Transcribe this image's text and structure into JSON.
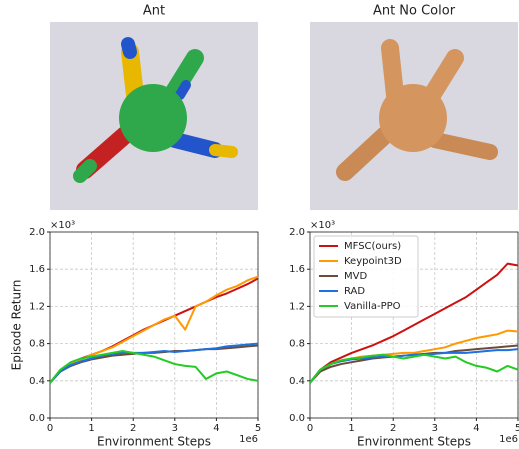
{
  "chart_data": [
    {
      "type": "line",
      "panel_title": "Ant",
      "x_label": "Environment Steps",
      "y_label": "Episode Return",
      "x_multiplier": "1e6",
      "y_multiplier": "×10³",
      "x": [
        0,
        0.25,
        0.5,
        0.75,
        1,
        1.25,
        1.5,
        1.75,
        2,
        2.25,
        2.5,
        2.75,
        3,
        3.25,
        3.5,
        3.75,
        4,
        4.25,
        4.5,
        4.75,
        5
      ],
      "xlim": [
        0,
        5
      ],
      "xticks": [
        0,
        1,
        2,
        3,
        4,
        5
      ],
      "ylim": [
        0,
        2
      ],
      "yticks": [
        {
          "value": 0,
          "label": "0.0"
        },
        0.4,
        0.8,
        1.2,
        1.6,
        {
          "value": 2,
          "label": "2.0"
        }
      ],
      "grid": true,
      "legend": false,
      "series": [
        {
          "color": "#cc1111",
          "values": [
            0.38,
            0.5,
            0.58,
            0.64,
            0.68,
            0.72,
            0.77,
            0.83,
            0.89,
            0.95,
            1.0,
            1.05,
            1.1,
            1.15,
            1.2,
            1.25,
            1.3,
            1.34,
            1.39,
            1.44,
            1.5
          ]
        },
        {
          "color": "#ff9900",
          "values": [
            0.38,
            0.5,
            0.58,
            0.63,
            0.68,
            0.72,
            0.76,
            0.82,
            0.88,
            0.94,
            1.0,
            1.06,
            1.1,
            0.95,
            1.2,
            1.25,
            1.32,
            1.38,
            1.42,
            1.48,
            1.52
          ]
        },
        {
          "color": "#6b4c3b",
          "values": [
            0.38,
            0.5,
            0.56,
            0.6,
            0.63,
            0.65,
            0.67,
            0.68,
            0.69,
            0.7,
            0.7,
            0.71,
            0.72,
            0.72,
            0.73,
            0.74,
            0.74,
            0.75,
            0.76,
            0.77,
            0.78
          ]
        },
        {
          "color": "#1f6fe0",
          "values": [
            0.38,
            0.5,
            0.57,
            0.61,
            0.64,
            0.67,
            0.69,
            0.7,
            0.7,
            0.7,
            0.71,
            0.72,
            0.71,
            0.72,
            0.73,
            0.74,
            0.75,
            0.77,
            0.78,
            0.79,
            0.8
          ]
        },
        {
          "color": "#22cc22",
          "values": [
            0.38,
            0.52,
            0.6,
            0.64,
            0.66,
            0.68,
            0.7,
            0.72,
            0.7,
            0.68,
            0.66,
            0.62,
            0.58,
            0.56,
            0.55,
            0.42,
            0.48,
            0.5,
            0.46,
            0.42,
            0.4
          ]
        }
      ]
    },
    {
      "type": "line",
      "panel_title": "Ant No Color",
      "x_label": "Environment Steps",
      "x_multiplier": "1e6",
      "y_multiplier": "×10³",
      "x": [
        0,
        0.25,
        0.5,
        0.75,
        1,
        1.25,
        1.5,
        1.75,
        2,
        2.25,
        2.5,
        2.75,
        3,
        3.25,
        3.5,
        3.75,
        4,
        4.25,
        4.5,
        4.75,
        5
      ],
      "xlim": [
        0,
        5
      ],
      "xticks": [
        0,
        1,
        2,
        3,
        4,
        5
      ],
      "ylim": [
        0,
        2
      ],
      "yticks": [
        {
          "value": 0,
          "label": "0.0"
        },
        0.4,
        0.8,
        1.2,
        1.6,
        {
          "value": 2,
          "label": "2.0"
        }
      ],
      "grid": true,
      "legend": "upper left",
      "series": [
        {
          "name": "MFSC(ours)",
          "color": "#cc1111",
          "values": [
            0.38,
            0.52,
            0.6,
            0.65,
            0.7,
            0.74,
            0.78,
            0.83,
            0.88,
            0.94,
            1.0,
            1.06,
            1.12,
            1.18,
            1.24,
            1.3,
            1.38,
            1.46,
            1.54,
            1.66,
            1.64
          ]
        },
        {
          "name": "Keypoint3D",
          "color": "#ff9900",
          "values": [
            0.38,
            0.5,
            0.58,
            0.62,
            0.64,
            0.66,
            0.67,
            0.68,
            0.69,
            0.7,
            0.7,
            0.72,
            0.74,
            0.76,
            0.8,
            0.83,
            0.86,
            0.88,
            0.9,
            0.94,
            0.93
          ]
        },
        {
          "name": "MVD",
          "color": "#6b4c3b",
          "values": [
            0.38,
            0.5,
            0.55,
            0.58,
            0.6,
            0.62,
            0.64,
            0.65,
            0.66,
            0.67,
            0.68,
            0.69,
            0.7,
            0.7,
            0.72,
            0.73,
            0.74,
            0.75,
            0.76,
            0.77,
            0.78
          ]
        },
        {
          "name": "RAD",
          "color": "#1f6fe0",
          "values": [
            0.38,
            0.52,
            0.58,
            0.61,
            0.63,
            0.64,
            0.65,
            0.66,
            0.66,
            0.67,
            0.68,
            0.68,
            0.69,
            0.7,
            0.7,
            0.7,
            0.71,
            0.72,
            0.73,
            0.73,
            0.74
          ]
        },
        {
          "name": "Vanilla-PPO",
          "color": "#22cc22",
          "values": [
            0.38,
            0.52,
            0.58,
            0.62,
            0.64,
            0.65,
            0.67,
            0.68,
            0.66,
            0.64,
            0.66,
            0.68,
            0.66,
            0.64,
            0.66,
            0.6,
            0.56,
            0.54,
            0.5,
            0.56,
            0.52
          ]
        }
      ]
    }
  ]
}
